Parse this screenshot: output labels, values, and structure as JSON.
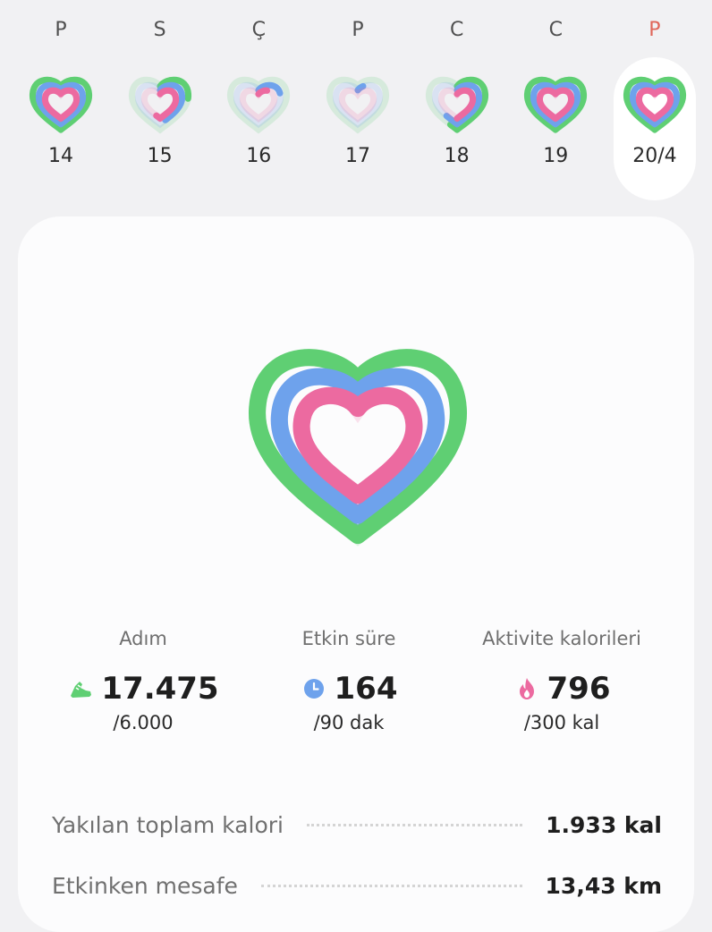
{
  "week": {
    "days": [
      {
        "letter": "P",
        "number": "14",
        "selected": false,
        "weekend": false,
        "progress": {
          "steps": 1.0,
          "active": 1.0,
          "calories": 1.0
        }
      },
      {
        "letter": "S",
        "number": "15",
        "selected": false,
        "weekend": false,
        "progress": {
          "steps": 0.25,
          "active": 0.45,
          "calories": 0.55
        }
      },
      {
        "letter": "Ç",
        "number": "16",
        "selected": false,
        "weekend": false,
        "progress": {
          "steps": 0.0,
          "active": 0.2,
          "calories": 0.1
        }
      },
      {
        "letter": "P",
        "number": "17",
        "selected": false,
        "weekend": false,
        "progress": {
          "steps": 0.0,
          "active": 0.05,
          "calories": 0.0
        }
      },
      {
        "letter": "C",
        "number": "18",
        "selected": false,
        "weekend": false,
        "progress": {
          "steps": 0.55,
          "active": 0.6,
          "calories": 0.5
        }
      },
      {
        "letter": "C",
        "number": "19",
        "selected": false,
        "weekend": false,
        "progress": {
          "steps": 1.0,
          "active": 1.0,
          "calories": 1.0
        }
      },
      {
        "letter": "P",
        "number": "20/4",
        "selected": true,
        "weekend": true,
        "progress": {
          "steps": 1.0,
          "active": 1.0,
          "calories": 1.0
        }
      }
    ]
  },
  "colors": {
    "steps": "#5fcf73",
    "active": "#6ea2ec",
    "calories": "#ec6aa0",
    "sunday": "#e0665a"
  },
  "stats": [
    {
      "label": "Adım",
      "icon": "shoe-icon",
      "value": "17.475",
      "goal": "/6.000"
    },
    {
      "label": "Etkin süre",
      "icon": "clock-icon",
      "value": "164",
      "goal": "/90 dak"
    },
    {
      "label": "Aktivite kalorileri",
      "icon": "flame-icon",
      "value": "796",
      "goal": "/300 kal"
    }
  ],
  "summary": [
    {
      "label": "Yakılan toplam kalori",
      "value": "1.933 kal"
    },
    {
      "label": "Etkinken mesafe",
      "value": "13,43 km"
    }
  ]
}
